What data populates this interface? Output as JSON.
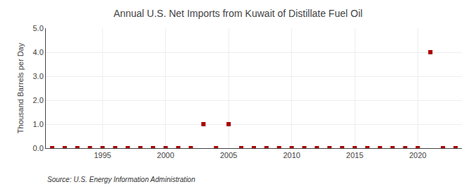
{
  "chart_data": {
    "type": "scatter",
    "title": "Annual U.S. Net Imports from Kuwait of Distillate Fuel Oil",
    "y_label": "Thousand Barrels per Day",
    "annotations": [
      "Source: U.S. Energy Information Administration"
    ],
    "x": [
      1991,
      1992,
      1993,
      1994,
      1995,
      1996,
      1997,
      1998,
      1999,
      2000,
      2001,
      2002,
      2003,
      2004,
      2005,
      2006,
      2007,
      2008,
      2009,
      2010,
      2011,
      2012,
      2013,
      2014,
      2015,
      2016,
      2017,
      2018,
      2019,
      2020,
      2021,
      2022,
      2023
    ],
    "values": [
      0,
      0,
      0,
      0,
      0,
      0,
      0,
      0,
      0,
      0,
      0,
      0,
      1,
      0,
      1,
      0,
      0,
      0,
      0,
      0,
      0,
      0,
      0,
      0,
      0,
      0,
      0,
      0,
      0,
      0,
      4,
      0,
      0
    ],
    "color": "#aa0000",
    "marker": "square",
    "xlim": [
      1990.5,
      2023.5
    ],
    "xticks": [
      1995,
      2000,
      2005,
      2010,
      2015,
      2020
    ],
    "ylim": [
      0.0,
      5.0
    ],
    "yticks": [
      {
        "value": 0,
        "label": "0.0"
      },
      {
        "value": 1,
        "label": "1.0"
      },
      {
        "value": 2,
        "label": "2.0"
      },
      {
        "value": 3,
        "label": "3.0"
      },
      {
        "value": 4,
        "label": "4.0"
      },
      {
        "value": 5,
        "label": "5.0"
      }
    ],
    "grid": true
  }
}
